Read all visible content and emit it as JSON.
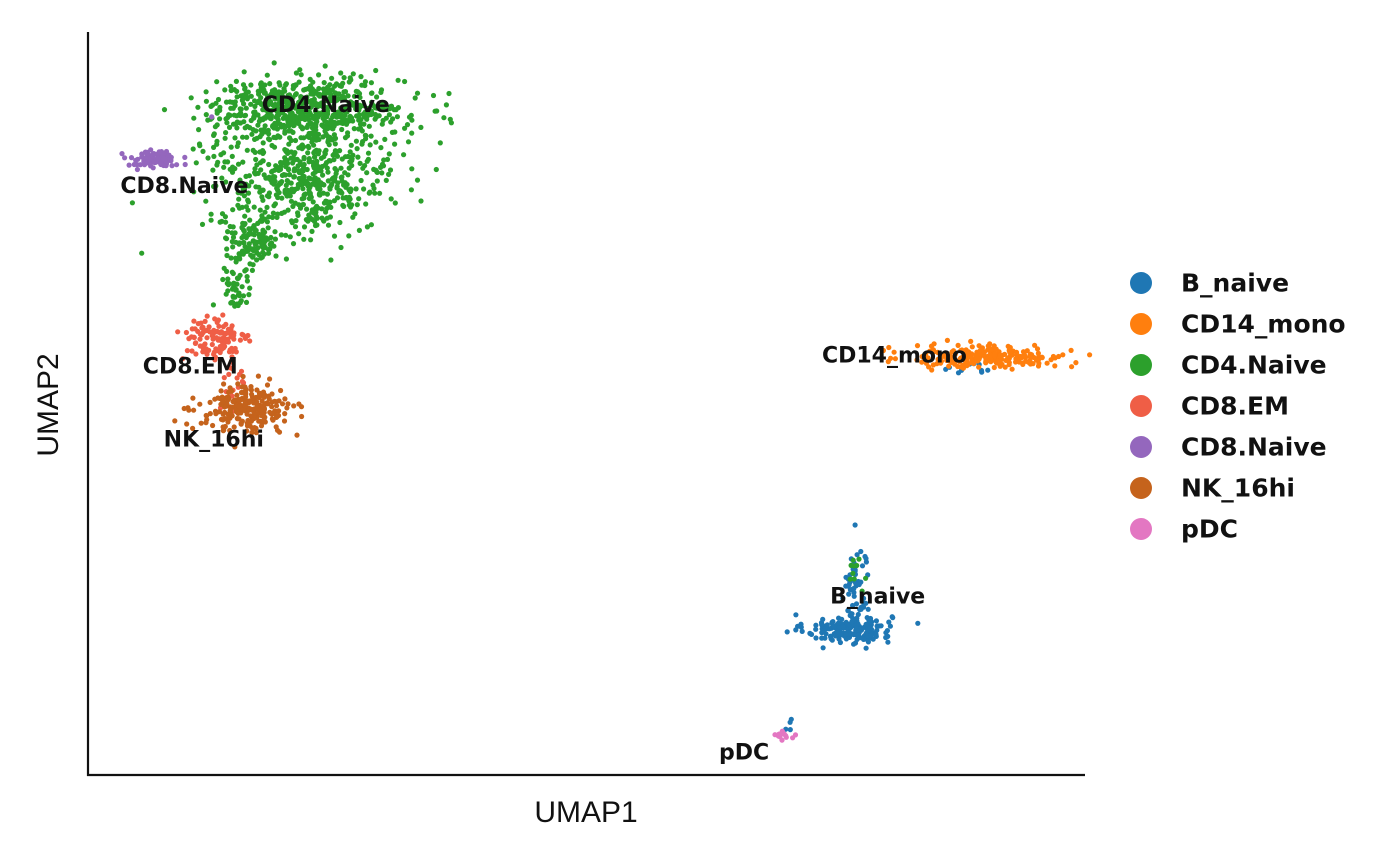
{
  "chart_data": {
    "type": "scatter",
    "title": "",
    "xlabel": "UMAP1",
    "ylabel": "UMAP2",
    "grid": false,
    "show_ticks": false,
    "legend_position": "right",
    "xlim": [
      0,
      100
    ],
    "ylim": [
      0,
      100
    ],
    "point_radius": 2.6,
    "series": [
      {
        "name": "B_naive",
        "color": "#1f77b4",
        "clusters": [
          {
            "cx": 76.6,
            "cy": 19.1,
            "sx": 2.2,
            "sy": 1.0,
            "n": 170
          },
          {
            "cx": 77.4,
            "cy": 25.0,
            "sx": 0.7,
            "sy": 3.1,
            "n": 55
          },
          {
            "cx": 89.5,
            "cy": 54.7,
            "sx": 1.2,
            "sy": 0.6,
            "n": 10
          },
          {
            "cx": 70.7,
            "cy": 5.3,
            "sx": 0.2,
            "sy": 0.8,
            "n": 4
          }
        ]
      },
      {
        "name": "CD14_mono",
        "color": "#ff7f0e",
        "clusters": [
          {
            "cx": 91.0,
            "cy": 56.5,
            "sx": 4.0,
            "sy": 0.8,
            "n": 240
          }
        ]
      },
      {
        "name": "CD4.Naive",
        "color": "#2ca02c",
        "clusters": [
          {
            "cx": 21.5,
            "cy": 90.5,
            "sx": 5.0,
            "sy": 2.1,
            "n": 620
          },
          {
            "cx": 21.5,
            "cy": 80.8,
            "sx": 4.3,
            "sy": 3.6,
            "n": 520
          },
          {
            "cx": 15.8,
            "cy": 72.4,
            "sx": 1.5,
            "sy": 1.8,
            "n": 120
          },
          {
            "cx": 14.2,
            "cy": 66.0,
            "sx": 0.7,
            "sy": 2.4,
            "n": 50
          },
          {
            "cx": 12.0,
            "cy": 84.5,
            "sx": 1.5,
            "sy": 1.5,
            "n": 14
          },
          {
            "cx": 77.2,
            "cy": 27.0,
            "sx": 0.5,
            "sy": 1.7,
            "n": 10
          }
        ]
      },
      {
        "name": "CD8.EM",
        "color": "#ef5e46",
        "clusters": [
          {
            "cx": 12.2,
            "cy": 58.8,
            "sx": 1.7,
            "sy": 1.6,
            "n": 110
          },
          {
            "cx": 14.0,
            "cy": 53.0,
            "sx": 0.7,
            "sy": 2.0,
            "n": 18
          }
        ]
      },
      {
        "name": "CD8.Naive",
        "color": "#9467bd",
        "clusters": [
          {
            "cx": 5.9,
            "cy": 83.6,
            "sx": 1.2,
            "sy": 0.6,
            "n": 90
          },
          {
            "cx": 11.7,
            "cy": 90.0,
            "sx": 0.4,
            "sy": 0.4,
            "n": 1
          }
        ]
      },
      {
        "name": "NK_16hi",
        "color": "#c5631c",
        "clusters": [
          {
            "cx": 15.3,
            "cy": 49.3,
            "sx": 2.4,
            "sy": 1.6,
            "n": 240
          }
        ]
      },
      {
        "name": "pDC",
        "color": "#e377c2",
        "clusters": [
          {
            "cx": 70.3,
            "cy": 4.5,
            "sx": 0.5,
            "sy": 0.3,
            "n": 16
          }
        ]
      }
    ],
    "cluster_labels": [
      {
        "text": "CD4.Naive",
        "x": 23.4,
        "y": 90.9,
        "anchor": "middle"
      },
      {
        "text": "CD8.Naive",
        "x": 9.0,
        "y": 79.8,
        "anchor": "middle"
      },
      {
        "text": "CD8.EM",
        "x": 9.6,
        "y": 55.0,
        "anchor": "middle"
      },
      {
        "text": "NK_16hi",
        "x": 12.0,
        "y": 45.0,
        "anchor": "middle"
      },
      {
        "text": "CD14_mono",
        "x": 81.3,
        "y": 56.5,
        "anchor": "middle"
      },
      {
        "text": "B_naive",
        "x": 79.6,
        "y": 23.4,
        "anchor": "middle"
      },
      {
        "text": "pDC",
        "x": 66.0,
        "y": 2.0,
        "anchor": "middle"
      }
    ]
  }
}
